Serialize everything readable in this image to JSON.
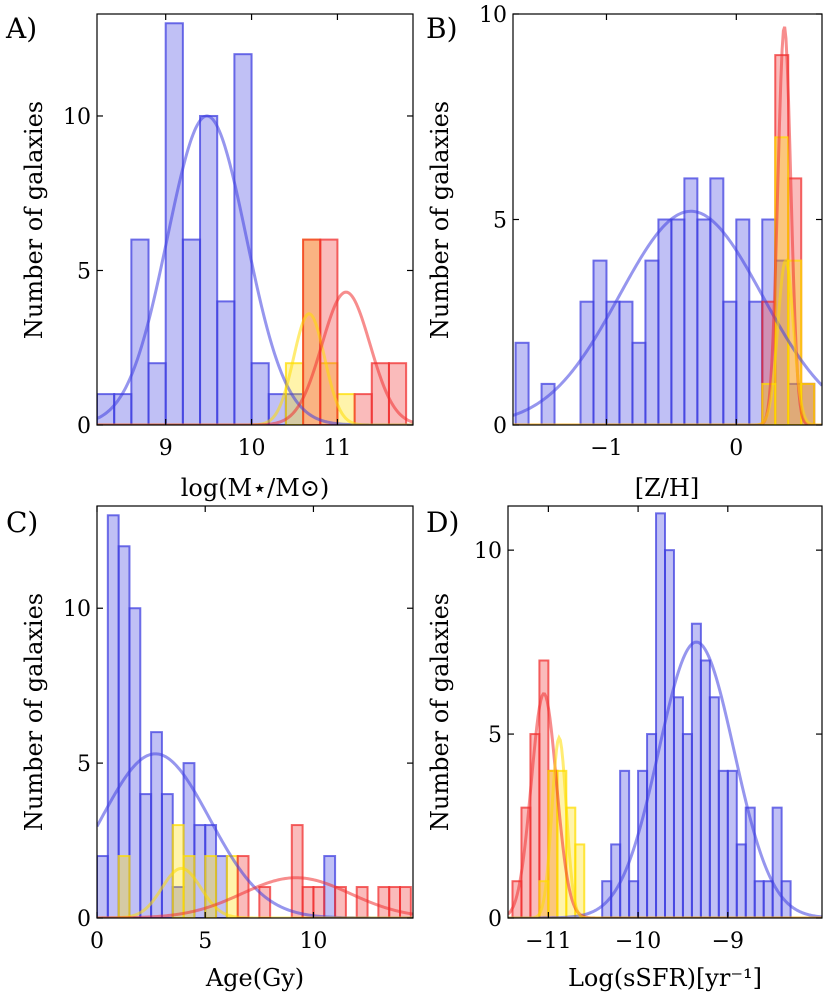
{
  "chart_data": [
    {
      "panel": "A)",
      "type": "bar",
      "xlabel": "log(M⋆/M⊙)",
      "ylabel": "Number of galaxies",
      "xlim": [
        8.2,
        11.88
      ],
      "ylim": [
        0,
        13.3
      ],
      "xticks": [
        9,
        10,
        11
      ],
      "yticks": [
        0,
        5,
        10
      ],
      "series": [
        {
          "name": "blue",
          "color": "#4040e0",
          "bins": [
            [
              8.2,
              8.4,
              1
            ],
            [
              8.4,
              8.6,
              1
            ],
            [
              8.6,
              8.8,
              6
            ],
            [
              8.8,
              9.0,
              2
            ],
            [
              9.0,
              9.2,
              13
            ],
            [
              9.2,
              9.4,
              6
            ],
            [
              9.4,
              9.6,
              10
            ],
            [
              9.6,
              9.8,
              4
            ],
            [
              9.8,
              10.0,
              12
            ],
            [
              10.0,
              10.2,
              2
            ],
            [
              10.2,
              10.4,
              1
            ],
            [
              10.4,
              10.6,
              1
            ]
          ],
          "fit": {
            "mu": 9.48,
            "sigma": 0.46,
            "amp": 10
          }
        },
        {
          "name": "yellow",
          "color": "#ffdd00",
          "bins": [
            [
              10.4,
              10.6,
              2
            ],
            [
              10.6,
              10.8,
              6
            ],
            [
              10.8,
              11.0,
              2
            ],
            [
              11.0,
              11.2,
              1
            ]
          ],
          "fit": {
            "mu": 10.67,
            "sigma": 0.18,
            "amp": 3.6
          }
        },
        {
          "name": "red",
          "color": "#f03030",
          "bins": [
            [
              10.6,
              10.8,
              6
            ],
            [
              10.8,
              11.0,
              6
            ],
            [
              11.2,
              11.4,
              1
            ],
            [
              11.4,
              11.6,
              2
            ],
            [
              11.6,
              11.8,
              2
            ]
          ],
          "fit": {
            "mu": 11.1,
            "sigma": 0.28,
            "amp": 4.3
          }
        }
      ]
    },
    {
      "panel": "B)",
      "type": "bar",
      "xlabel": "[Z/H]",
      "ylabel": "Number of galaxies",
      "xlim": [
        -1.72,
        0.66
      ],
      "ylim": [
        0,
        10
      ],
      "xticks": [
        -1,
        0
      ],
      "yticks": [
        0,
        5,
        10
      ],
      "series": [
        {
          "name": "blue",
          "color": "#4040e0",
          "bins": [
            [
              -1.7,
              -1.6,
              2
            ],
            [
              -1.5,
              -1.4,
              1
            ],
            [
              -1.2,
              -1.1,
              3
            ],
            [
              -1.1,
              -1.0,
              4
            ],
            [
              -1.0,
              -0.9,
              3
            ],
            [
              -0.9,
              -0.8,
              3
            ],
            [
              -0.8,
              -0.7,
              2
            ],
            [
              -0.7,
              -0.6,
              4
            ],
            [
              -0.6,
              -0.5,
              5
            ],
            [
              -0.5,
              -0.4,
              5
            ],
            [
              -0.4,
              -0.3,
              6
            ],
            [
              -0.3,
              -0.2,
              5
            ],
            [
              -0.2,
              -0.1,
              6
            ],
            [
              -0.1,
              0.0,
              3
            ],
            [
              0.0,
              0.1,
              5
            ],
            [
              0.1,
              0.2,
              3
            ],
            [
              0.2,
              0.3,
              5
            ],
            [
              0.3,
              0.4,
              4
            ],
            [
              0.4,
              0.5,
              1
            ],
            [
              0.5,
              0.6,
              1
            ]
          ],
          "fit": {
            "mu": -0.35,
            "sigma": 0.55,
            "amp": 5.2
          }
        },
        {
          "name": "red",
          "color": "#f03030",
          "bins": [
            [
              0.2,
              0.3,
              3
            ],
            [
              0.3,
              0.4,
              9
            ],
            [
              0.4,
              0.5,
              6
            ],
            [
              0.5,
              0.6,
              1
            ]
          ],
          "fit": {
            "mu": 0.37,
            "sigma": 0.05,
            "amp": 9.7
          }
        },
        {
          "name": "yellow",
          "color": "#ffdd00",
          "bins": [
            [
              0.2,
              0.3,
              1
            ],
            [
              0.3,
              0.4,
              7
            ],
            [
              0.4,
              0.5,
              4
            ],
            [
              0.5,
              0.6,
              1
            ]
          ],
          "fit": {
            "mu": 0.38,
            "sigma": 0.06,
            "amp": 4
          }
        }
      ]
    },
    {
      "panel": "C)",
      "type": "bar",
      "xlabel": "Age(Gy)",
      "ylabel": "Number of galaxies",
      "xlim": [
        0,
        14.6
      ],
      "ylim": [
        0,
        13.3
      ],
      "xticks": [
        0,
        5,
        10
      ],
      "yticks": [
        0,
        5,
        10
      ],
      "series": [
        {
          "name": "blue",
          "color": "#4040e0",
          "bins": [
            [
              0,
              0.5,
              2
            ],
            [
              0.5,
              1.0,
              13
            ],
            [
              1.0,
              1.5,
              12
            ],
            [
              1.5,
              2.0,
              10
            ],
            [
              2.0,
              2.5,
              4
            ],
            [
              2.5,
              3.0,
              6
            ],
            [
              3.0,
              3.5,
              4
            ],
            [
              3.5,
              4.0,
              1
            ],
            [
              4.0,
              4.5,
              5
            ],
            [
              4.5,
              5.0,
              3
            ],
            [
              5.0,
              5.5,
              3
            ],
            [
              5.5,
              6.0,
              2
            ],
            [
              10.5,
              11.0,
              2
            ]
          ],
          "fit": {
            "mu": 2.7,
            "sigma": 2.5,
            "amp": 5.3
          }
        },
        {
          "name": "yellow",
          "color": "#ffdd00",
          "bins": [
            [
              1.0,
              1.5,
              2
            ],
            [
              3.5,
              4.0,
              3
            ],
            [
              4.0,
              4.5,
              2
            ],
            [
              5.0,
              5.5,
              2
            ],
            [
              6.0,
              6.5,
              2
            ]
          ],
          "fit": {
            "mu": 3.9,
            "sigma": 0.9,
            "amp": 1.6
          }
        },
        {
          "name": "red",
          "color": "#f03030",
          "bins": [
            [
              6.5,
              7.0,
              2
            ],
            [
              7.5,
              8.0,
              1
            ],
            [
              9.0,
              9.5,
              3
            ],
            [
              9.5,
              10.0,
              1
            ],
            [
              10.0,
              10.5,
              1
            ],
            [
              11.0,
              11.5,
              1
            ],
            [
              12.0,
              12.5,
              1
            ],
            [
              13.0,
              13.5,
              1
            ],
            [
              13.5,
              14.0,
              1
            ],
            [
              14.0,
              14.5,
              1
            ]
          ],
          "fit": {
            "mu": 9.2,
            "sigma": 2.5,
            "amp": 1.3
          }
        }
      ]
    },
    {
      "panel": "D)",
      "type": "bar",
      "xlabel": "Log(sSFR)[yr⁻¹]",
      "ylabel": "Number of galaxies",
      "xlim": [
        -11.45,
        -7.95
      ],
      "ylim": [
        0,
        11.2
      ],
      "xticks": [
        -11,
        -10,
        -9
      ],
      "yticks": [
        0,
        5,
        10
      ],
      "series": [
        {
          "name": "blue",
          "color": "#4040e0",
          "bins": [
            [
              -10.4,
              -10.3,
              1
            ],
            [
              -10.3,
              -10.2,
              2
            ],
            [
              -10.2,
              -10.1,
              4
            ],
            [
              -10.1,
              -10.0,
              1
            ],
            [
              -10.0,
              -9.9,
              4
            ],
            [
              -9.9,
              -9.8,
              5
            ],
            [
              -9.8,
              -9.7,
              11
            ],
            [
              -9.7,
              -9.6,
              10
            ],
            [
              -9.6,
              -9.5,
              6
            ],
            [
              -9.5,
              -9.4,
              5
            ],
            [
              -9.4,
              -9.3,
              8
            ],
            [
              -9.3,
              -9.2,
              7
            ],
            [
              -9.2,
              -9.1,
              6
            ],
            [
              -9.1,
              -9.0,
              4
            ],
            [
              -9.0,
              -8.9,
              4
            ],
            [
              -8.9,
              -8.8,
              2
            ],
            [
              -8.8,
              -8.7,
              3
            ],
            [
              -8.7,
              -8.6,
              1
            ],
            [
              -8.6,
              -8.5,
              1
            ],
            [
              -8.5,
              -8.4,
              3
            ],
            [
              -8.4,
              -8.3,
              1
            ]
          ],
          "fit": {
            "mu": -9.35,
            "sigma": 0.42,
            "amp": 7.5
          }
        },
        {
          "name": "red",
          "color": "#f03030",
          "bins": [
            [
              -11.4,
              -11.3,
              1
            ],
            [
              -11.3,
              -11.2,
              3
            ],
            [
              -11.2,
              -11.1,
              5
            ],
            [
              -11.1,
              -11.0,
              7
            ],
            [
              -11.0,
              -10.9,
              4
            ]
          ],
          "fit": {
            "mu": -11.05,
            "sigma": 0.14,
            "amp": 6.1
          }
        },
        {
          "name": "yellow",
          "color": "#ffdd00",
          "bins": [
            [
              -11.1,
              -11.0,
              1
            ],
            [
              -11.0,
              -10.9,
              4
            ],
            [
              -10.9,
              -10.8,
              4
            ],
            [
              -10.8,
              -10.7,
              3
            ],
            [
              -10.7,
              -10.6,
              2
            ]
          ],
          "fit": {
            "mu": -10.88,
            "sigma": 0.08,
            "amp": 4.9
          }
        }
      ]
    }
  ]
}
